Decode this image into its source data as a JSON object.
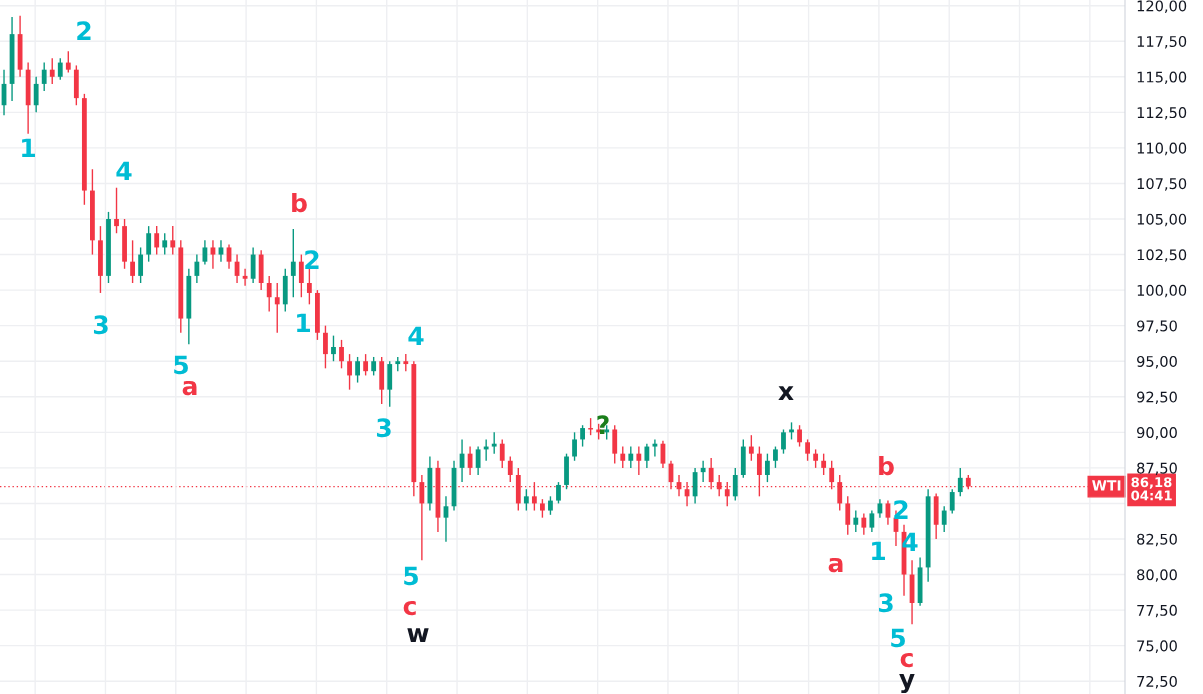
{
  "chart_data": {
    "type": "candlestick",
    "categories": [
      null,
      null,
      null,
      null,
      null,
      null,
      null,
      null,
      null,
      null,
      null,
      null,
      null,
      null,
      null,
      null,
      null,
      null,
      null,
      null,
      null,
      null,
      null,
      null,
      null,
      null,
      null,
      null,
      null,
      null,
      null,
      null,
      null,
      null,
      null,
      null,
      null,
      null,
      null,
      null,
      null,
      null,
      null,
      null,
      null,
      null,
      null,
      null,
      null,
      null,
      null,
      null,
      null,
      null,
      null,
      null,
      null,
      null,
      null,
      null,
      null,
      null,
      null,
      null,
      null,
      null,
      null,
      null,
      null,
      null,
      null,
      null,
      null,
      null,
      null,
      null,
      null,
      null,
      null,
      null,
      null,
      null,
      null,
      null,
      null,
      null,
      null,
      null,
      null,
      null,
      null,
      null,
      null,
      null,
      null,
      null,
      null,
      null,
      null,
      null,
      null,
      null,
      null,
      null,
      null,
      null,
      null,
      null,
      null,
      null,
      null,
      null,
      null,
      null,
      null,
      null,
      null,
      null,
      null,
      null,
      null,
      null,
      null,
      null,
      null,
      null,
      null,
      null,
      null,
      null,
      null,
      null,
      null,
      null,
      null,
      null,
      null,
      null,
      null,
      null
    ],
    "ohlc": [
      [
        113,
        115.5,
        112.3,
        114.5
      ],
      [
        114.5,
        119.2,
        113.3,
        118
      ],
      [
        118,
        119.3,
        115,
        115.5
      ],
      [
        115.5,
        116,
        111,
        113
      ],
      [
        113,
        115,
        112.5,
        114.5
      ],
      [
        114.5,
        116,
        114,
        115.5
      ],
      [
        115.5,
        116.3,
        114.5,
        115
      ],
      [
        115,
        116.3,
        114.8,
        116
      ],
      [
        116,
        116.8,
        115.3,
        115.5
      ],
      [
        115.5,
        115.8,
        113,
        113.5
      ],
      [
        113.5,
        113.8,
        106,
        107
      ],
      [
        107,
        108.5,
        102.5,
        103.5
      ],
      [
        103.5,
        104.5,
        99.8,
        101
      ],
      [
        101,
        105.5,
        100.5,
        105
      ],
      [
        105,
        107.2,
        104,
        104.5
      ],
      [
        104.5,
        105,
        101.5,
        102
      ],
      [
        102,
        103.5,
        100.5,
        101
      ],
      [
        101,
        103,
        100.5,
        102.5
      ],
      [
        102.5,
        104.5,
        102,
        104
      ],
      [
        104,
        104.5,
        102.5,
        103
      ],
      [
        103,
        104,
        102.5,
        103.5
      ],
      [
        103.5,
        104.5,
        102.5,
        103
      ],
      [
        103,
        103.5,
        97,
        98
      ],
      [
        98,
        101.5,
        96.2,
        101
      ],
      [
        101,
        102.5,
        100.5,
        102
      ],
      [
        102,
        103.5,
        101.8,
        103
      ],
      [
        103,
        103.5,
        101.5,
        102.5
      ],
      [
        102.5,
        103.5,
        102,
        103
      ],
      [
        103,
        103.2,
        101.5,
        102
      ],
      [
        102,
        102.5,
        100.5,
        101
      ],
      [
        101,
        101.5,
        100.3,
        100.8
      ],
      [
        100.8,
        103,
        100.5,
        102.5
      ],
      [
        102.5,
        102.8,
        100,
        100.5
      ],
      [
        100.5,
        101,
        98.5,
        99.5
      ],
      [
        99.5,
        100.5,
        97,
        99
      ],
      [
        99,
        101.5,
        98.5,
        101
      ],
      [
        101,
        104.3,
        99.5,
        102
      ],
      [
        102,
        102.5,
        99.5,
        100.5
      ],
      [
        100.5,
        101.5,
        99,
        99.8
      ],
      [
        99.8,
        100,
        96.5,
        97
      ],
      [
        97,
        97.5,
        94.5,
        95.5
      ],
      [
        95.5,
        96.8,
        95,
        96
      ],
      [
        96,
        96.5,
        94.5,
        95
      ],
      [
        95,
        95.5,
        93,
        94
      ],
      [
        94,
        95.3,
        93.5,
        95
      ],
      [
        95,
        95.5,
        94,
        94.3
      ],
      [
        94.3,
        95.3,
        94,
        95
      ],
      [
        95,
        95.3,
        92,
        93
      ],
      [
        93,
        95,
        91.8,
        94.8
      ],
      [
        94.8,
        95.3,
        94.3,
        95
      ],
      [
        95,
        95.5,
        94.3,
        94.8
      ],
      [
        94.8,
        95,
        85.5,
        86.5
      ],
      [
        86.5,
        87,
        81,
        85
      ],
      [
        85,
        88.3,
        84.5,
        87.5
      ],
      [
        87.5,
        88,
        83,
        84
      ],
      [
        84,
        85.5,
        82.3,
        84.8
      ],
      [
        84.8,
        88,
        84.5,
        87.5
      ],
      [
        87.5,
        89.5,
        86.5,
        88.5
      ],
      [
        88.5,
        89,
        87,
        87.5
      ],
      [
        87.5,
        89,
        87,
        88.8
      ],
      [
        88.8,
        89.5,
        88,
        89
      ],
      [
        89,
        90,
        88.5,
        89.2
      ],
      [
        89.2,
        89.5,
        87.5,
        88
      ],
      [
        88,
        88.3,
        86.5,
        87
      ],
      [
        87,
        87.5,
        84.5,
        85
      ],
      [
        85,
        86,
        84.5,
        85.5
      ],
      [
        85.5,
        86.5,
        84.5,
        85
      ],
      [
        85,
        85.3,
        84,
        84.5
      ],
      [
        84.5,
        85.5,
        84.2,
        85.2
      ],
      [
        85.2,
        86.5,
        85,
        86.3
      ],
      [
        86.3,
        88.5,
        86,
        88.3
      ],
      [
        88.3,
        90,
        88,
        89.5
      ],
      [
        89.5,
        90.5,
        89,
        90.3
      ],
      [
        90.3,
        91,
        89.8,
        90.2
      ],
      [
        90.2,
        90.6,
        89.5,
        90
      ],
      [
        90,
        90.5,
        89.5,
        90.2
      ],
      [
        90.2,
        90.5,
        87.8,
        88.5
      ],
      [
        88.5,
        89,
        87.5,
        88
      ],
      [
        88,
        89,
        87.5,
        88.5
      ],
      [
        88.5,
        89,
        87,
        88
      ],
      [
        88,
        89.2,
        87.5,
        89
      ],
      [
        89,
        89.5,
        88.3,
        89.2
      ],
      [
        89.2,
        89.4,
        87.5,
        87.8
      ],
      [
        87.8,
        88,
        86,
        86.5
      ],
      [
        86.5,
        87,
        85.5,
        86
      ],
      [
        86,
        86.5,
        84.8,
        85.5
      ],
      [
        85.5,
        87.5,
        85,
        87.2
      ],
      [
        87.2,
        88,
        86.5,
        87.5
      ],
      [
        87.5,
        88.2,
        86,
        86.5
      ],
      [
        86.5,
        87,
        85.5,
        86
      ],
      [
        86,
        86.5,
        84.8,
        85.5
      ],
      [
        85.5,
        87.5,
        85.2,
        87
      ],
      [
        87,
        89.5,
        86.8,
        89
      ],
      [
        89,
        89.8,
        88,
        88.5
      ],
      [
        88.5,
        89,
        85.5,
        87
      ],
      [
        87,
        88.5,
        86.5,
        88
      ],
      [
        88,
        89,
        87.5,
        88.8
      ],
      [
        88.8,
        90.2,
        88.5,
        90
      ],
      [
        90,
        90.7,
        89.5,
        90.2
      ],
      [
        90.2,
        90.5,
        89,
        89.3
      ],
      [
        89.3,
        89.5,
        88,
        88.5
      ],
      [
        88.5,
        88.8,
        87.5,
        88
      ],
      [
        88,
        88.5,
        87,
        87.5
      ],
      [
        87.5,
        88,
        86,
        86.5
      ],
      [
        86.5,
        87,
        84.5,
        85
      ],
      [
        85,
        85.5,
        82.8,
        83.5
      ],
      [
        83.5,
        84.5,
        83,
        84
      ],
      [
        84,
        84.3,
        82.8,
        83.3
      ],
      [
        83.3,
        84.5,
        83,
        84.3
      ],
      [
        84.3,
        85.3,
        84,
        85
      ],
      [
        85,
        85.2,
        83.5,
        84
      ],
      [
        84,
        84.5,
        82,
        83
      ],
      [
        83,
        83.5,
        78.5,
        80
      ],
      [
        80,
        81,
        76.5,
        78
      ],
      [
        78,
        81.2,
        77.8,
        80.5
      ],
      [
        80.5,
        86,
        79.5,
        85.5
      ],
      [
        85.5,
        85.7,
        82.5,
        83.5
      ],
      [
        83.5,
        84.8,
        83,
        84.5
      ],
      [
        84.5,
        86,
        84.3,
        85.8
      ],
      [
        85.8,
        87.5,
        85.5,
        86.8
      ],
      [
        86.8,
        87,
        86,
        86.2
      ],
      null,
      null,
      null,
      null,
      null,
      null,
      null,
      null,
      null,
      null,
      null,
      null,
      null,
      null,
      null,
      null,
      null,
      null,
      null
    ],
    "colors": [
      "#089981",
      "#089981",
      "#f23645",
      "#f23645",
      "#089981",
      "#089981",
      "#f23645",
      "#089981",
      "#f23645",
      "#f23645",
      "#f23645",
      "#f23645",
      "#f23645",
      "#089981",
      "#f23645",
      "#f23645",
      "#f23645",
      "#089981",
      "#089981",
      "#f23645",
      "#089981",
      "#f23645",
      "#f23645",
      "#089981",
      "#089981",
      "#089981",
      "#f23645",
      "#089981",
      "#f23645",
      "#f23645",
      "#f23645",
      "#089981",
      "#f23645",
      "#f23645",
      "#f23645",
      "#089981",
      "#089981",
      "#f23645",
      "#f23645",
      "#f23645",
      "#f23645",
      "#089981",
      "#f23645",
      "#f23645",
      "#089981",
      "#f23645",
      "#089981",
      "#f23645",
      "#089981",
      "#089981",
      "#f23645",
      "#f23645",
      "#f23645",
      "#089981",
      "#f23645",
      "#089981",
      "#089981",
      "#089981",
      "#f23645",
      "#089981",
      "#089981",
      "#089981",
      "#f23645",
      "#f23645",
      "#f23645",
      "#089981",
      "#f23645",
      "#f23645",
      "#089981",
      "#089981",
      "#089981",
      "#089981",
      "#089981",
      "#f23645",
      "#f23645",
      "#089981",
      "#f23645",
      "#f23645",
      "#089981",
      "#f23645",
      "#089981",
      "#089981",
      "#f23645",
      "#f23645",
      "#f23645",
      "#f23645",
      "#089981",
      "#089981",
      "#f23645",
      "#f23645",
      "#f23645",
      "#089981",
      "#089981",
      "#f23645",
      "#f23645",
      "#089981",
      "#089981",
      "#089981",
      "#089981",
      "#f23645",
      "#f23645",
      "#f23645",
      "#f23645",
      "#f23645",
      "#f23645",
      "#f23645",
      "#089981",
      "#f23645",
      "#089981",
      "#089981",
      "#f23645",
      "#f23645",
      "#f23645",
      "#f23645",
      "#089981",
      "#089981",
      "#f23645",
      "#089981",
      "#089981",
      "#089981",
      "#f23645",
      null,
      null,
      null,
      null,
      null,
      null,
      null,
      null,
      null,
      null,
      null,
      null,
      null,
      null,
      null,
      null,
      null,
      null,
      null
    ],
    "ylim": [
      71.6,
      120.4
    ],
    "yticks": [
      {
        "value": 72.5,
        "label": "72,50"
      },
      {
        "value": 75,
        "label": "75,00"
      },
      {
        "value": 77.5,
        "label": "77,50"
      },
      {
        "value": 80,
        "label": "80,00"
      },
      {
        "value": 82.5,
        "label": "82,50"
      },
      {
        "value": 85,
        "label": null
      },
      {
        "value": 87.5,
        "label": "87,50"
      },
      {
        "value": 90,
        "label": "90,00"
      },
      {
        "value": 92.5,
        "label": "92,50"
      },
      {
        "value": 95,
        "label": "95,00"
      },
      {
        "value": 97.5,
        "label": "97,50"
      },
      {
        "value": 100,
        "label": "100,00"
      },
      {
        "value": 102.5,
        "label": "102,50"
      },
      {
        "value": 105,
        "label": "105,00"
      },
      {
        "value": 107.5,
        "label": "107,50"
      },
      {
        "value": 110,
        "label": "110,00"
      },
      {
        "value": 112.5,
        "label": "112,50"
      },
      {
        "value": 115,
        "label": "115,00"
      },
      {
        "value": 117.5,
        "label": "117,50"
      },
      {
        "value": 120,
        "label": "120,00"
      }
    ],
    "tick_labels": "y",
    "grid": true,
    "ref_lines": [
      {
        "axis": "y",
        "value": 86.18,
        "label": "86,18\n04:41",
        "color": "#f23645",
        "line_style": "dotted"
      }
    ],
    "annotations": [
      "WTI",
      "1",
      "2",
      "3",
      "4",
      "5",
      "a",
      "b",
      "1",
      "2",
      "3",
      "4",
      "5",
      "c",
      "w",
      "?",
      "x",
      "a",
      "b",
      "1",
      "2",
      "4",
      "3",
      "5",
      "c",
      "y"
    ]
  }
}
